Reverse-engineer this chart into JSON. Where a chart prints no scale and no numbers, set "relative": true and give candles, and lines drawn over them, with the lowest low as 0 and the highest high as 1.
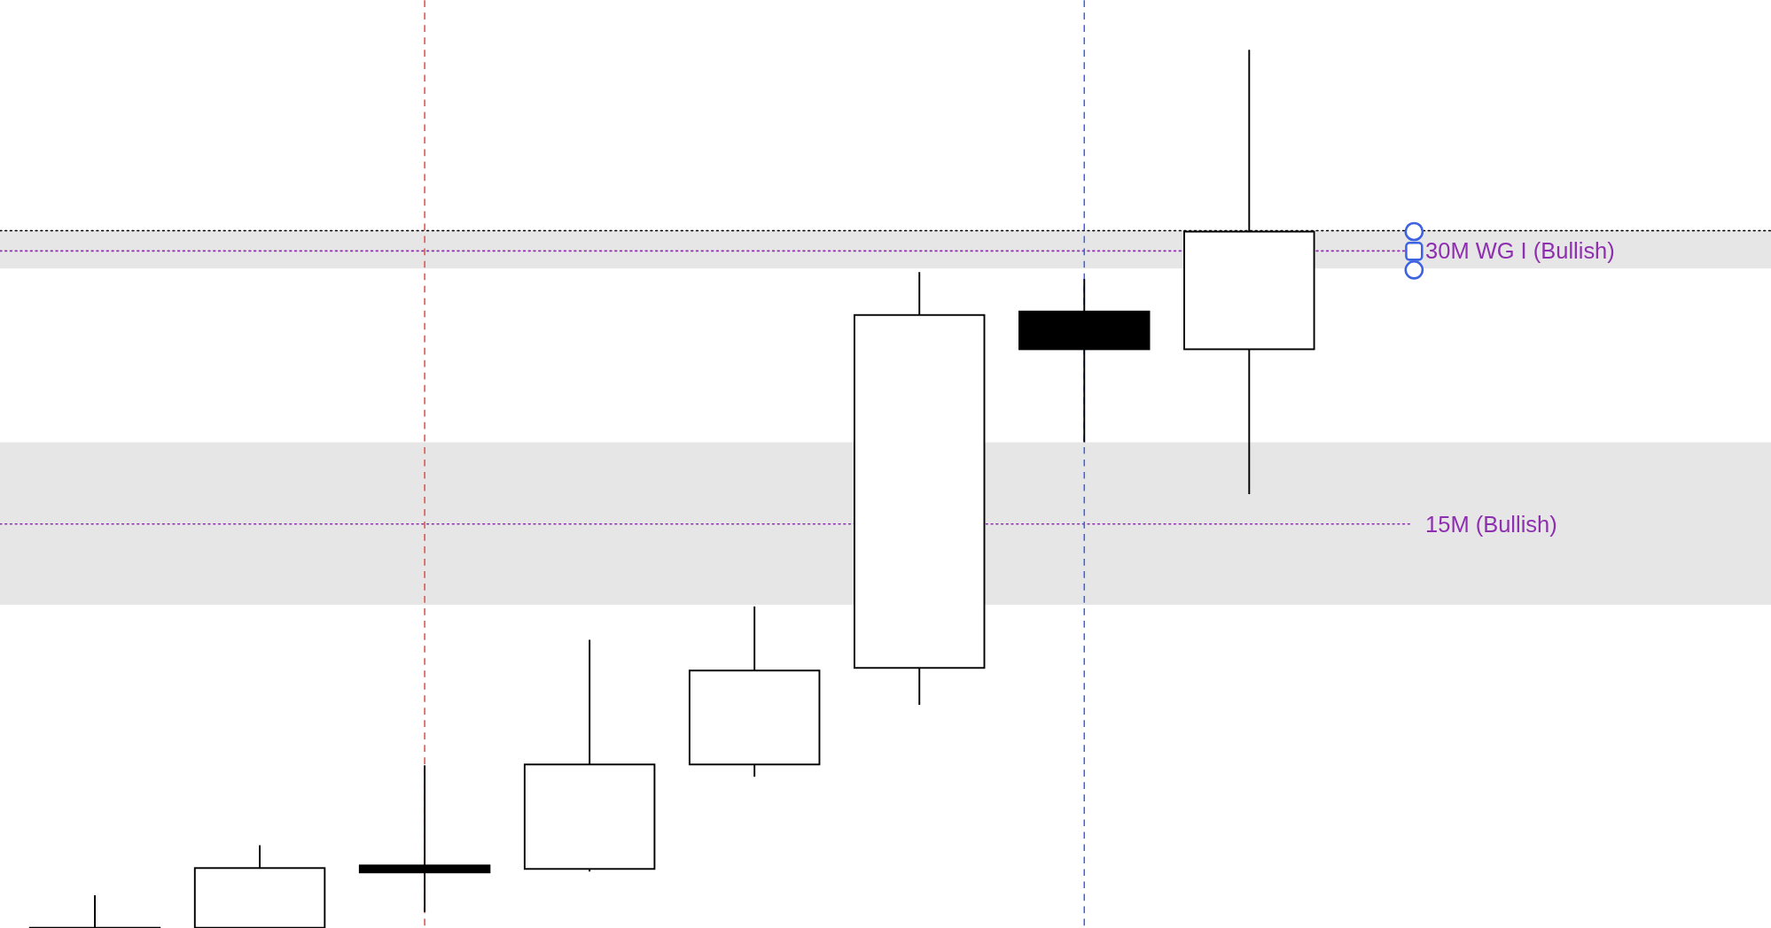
{
  "chart_data": {
    "type": "candlestick",
    "relative": true,
    "categories": [
      null,
      null,
      null,
      null,
      null,
      null,
      null,
      null,
      null,
      null,
      null
    ],
    "ohlc": [
      [
        0,
        0.037,
        0,
        0
      ],
      [
        0,
        0.094,
        0,
        0.068
      ],
      [
        0.071,
        0.185,
        0.018,
        0.063
      ],
      [
        0.067,
        0.328,
        0.064,
        0.186
      ],
      [
        0.186,
        0.366,
        0.172,
        0.293
      ],
      [
        0.296,
        0.747,
        0.254,
        0.698
      ],
      [
        0.702,
        0.739,
        0.553,
        0.659
      ],
      [
        0.659,
        1,
        0.494,
        0.793
      ],
      null,
      null,
      null
    ],
    "bands": [
      {
        "axis": "y",
        "from": 0.751,
        "to": 0.794,
        "color": "#e6e6e6"
      },
      {
        "axis": "y",
        "from": 0.368,
        "to": 0.553,
        "color": "#e6e6e6"
      }
    ],
    "ref_lines": [
      {
        "axis": "y",
        "value": 0.794,
        "color": "#000000",
        "line_style": "dotted"
      },
      {
        "axis": "y",
        "value": 0.771,
        "color": "#8e2fb0",
        "line_style": "dotted",
        "label": "30M WG I (Bullish)"
      },
      {
        "axis": "y",
        "value": 0.46,
        "color": "#8e2fb0",
        "line_style": "dotted",
        "label": "15M (Bullish)"
      }
    ]
  }
}
